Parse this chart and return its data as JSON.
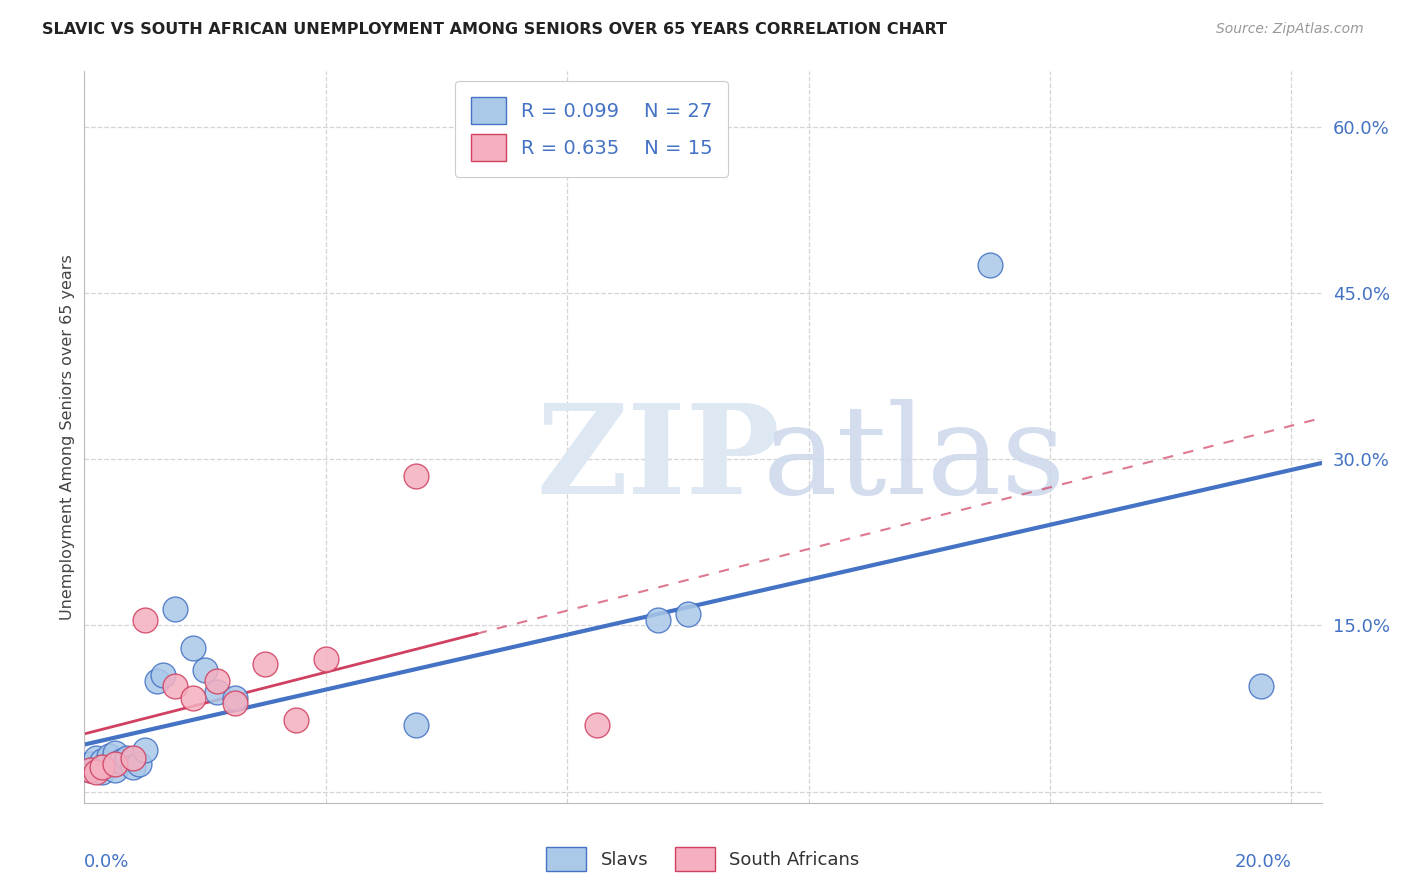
{
  "title": "SLAVIC VS SOUTH AFRICAN UNEMPLOYMENT AMONG SENIORS OVER 65 YEARS CORRELATION CHART",
  "source": "Source: ZipAtlas.com",
  "ylabel": "Unemployment Among Seniors over 65 years",
  "slavs_R": "0.099",
  "slavs_N": "27",
  "sa_R": "0.635",
  "sa_N": "15",
  "slavs_color": "#aac8e8",
  "sa_color": "#f5afc0",
  "trendline_slavs_color": "#4472c4",
  "trendline_sa_color": "#d04060",
  "legend_text_color": "#4472c4",
  "xlim": [
    0.0,
    0.205
  ],
  "ylim": [
    -0.01,
    0.65
  ],
  "ytick_vals": [
    0.0,
    0.15,
    0.3,
    0.45,
    0.6
  ],
  "ytick_labels": [
    "",
    "15.0%",
    "30.0%",
    "45.0%",
    "60.0%"
  ],
  "xtick_vals": [
    0.0,
    0.04,
    0.08,
    0.12,
    0.16,
    0.2
  ],
  "background_color": "#ffffff",
  "grid_color": "#d0d0d0",
  "slavs_x": [
    0.001,
    0.001,
    0.002,
    0.002,
    0.003,
    0.003,
    0.004,
    0.004,
    0.005,
    0.005,
    0.006,
    0.007,
    0.008,
    0.009,
    0.01,
    0.012,
    0.013,
    0.015,
    0.018,
    0.02,
    0.022,
    0.025,
    0.055,
    0.095,
    0.1,
    0.15,
    0.195
  ],
  "slavs_y": [
    0.02,
    0.025,
    0.022,
    0.03,
    0.018,
    0.028,
    0.025,
    0.032,
    0.02,
    0.035,
    0.028,
    0.03,
    0.022,
    0.025,
    0.038,
    0.1,
    0.105,
    0.165,
    0.13,
    0.11,
    0.09,
    0.085,
    0.06,
    0.155,
    0.16,
    0.475,
    0.095
  ],
  "sa_x": [
    0.001,
    0.002,
    0.003,
    0.005,
    0.008,
    0.01,
    0.015,
    0.018,
    0.022,
    0.025,
    0.03,
    0.035,
    0.04,
    0.055,
    0.085
  ],
  "sa_y": [
    0.02,
    0.018,
    0.022,
    0.025,
    0.03,
    0.155,
    0.095,
    0.085,
    0.1,
    0.08,
    0.115,
    0.065,
    0.12,
    0.285,
    0.06
  ]
}
